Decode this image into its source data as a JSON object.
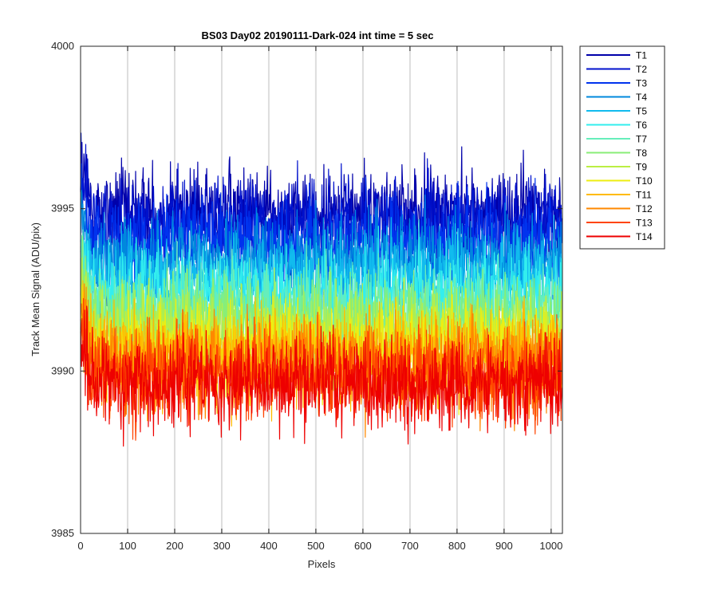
{
  "chart_data": {
    "type": "line",
    "title": "BS03 Day02 20190111-Dark-024 int time = 5 sec",
    "xlabel": "Pixels",
    "ylabel": "Track Mean Signal (ADU/pix)",
    "xlim": [
      0,
      1024
    ],
    "ylim": [
      3985,
      4000
    ],
    "xticks": [
      0,
      100,
      200,
      300,
      400,
      500,
      600,
      700,
      800,
      900,
      1000
    ],
    "yticks": [
      3985,
      3990,
      3995,
      4000
    ],
    "grid": "vertical",
    "legend_position": "outside-top-right",
    "x_count": 1024,
    "series": [
      {
        "name": "T1",
        "color": "#0000aa",
        "mean": 3994.9,
        "std": 0.95,
        "min": 3992.2,
        "max": 3998.2
      },
      {
        "name": "T2",
        "color": "#0011cc",
        "mean": 3994.5,
        "std": 0.95,
        "min": 3992.0,
        "max": 3997.6
      },
      {
        "name": "T3",
        "color": "#0033ee",
        "mean": 3994.0,
        "std": 0.95,
        "min": 3991.5,
        "max": 3997.0
      },
      {
        "name": "T4",
        "color": "#0088dd",
        "mean": 3993.4,
        "std": 0.95,
        "min": 3990.8,
        "max": 3996.6
      },
      {
        "name": "T5",
        "color": "#11bbee",
        "mean": 3992.9,
        "std": 0.95,
        "min": 3990.3,
        "max": 3996.0
      },
      {
        "name": "T6",
        "color": "#33eeee",
        "mean": 3992.4,
        "std": 0.95,
        "min": 3989.8,
        "max": 3995.4
      },
      {
        "name": "T7",
        "color": "#66eebb",
        "mean": 3991.9,
        "std": 0.95,
        "min": 3989.3,
        "max": 3995.0
      },
      {
        "name": "T8",
        "color": "#88ee77",
        "mean": 3991.5,
        "std": 0.95,
        "min": 3988.8,
        "max": 3994.6
      },
      {
        "name": "T9",
        "color": "#bbee44",
        "mean": 3991.1,
        "std": 0.95,
        "min": 3988.4,
        "max": 3994.2
      },
      {
        "name": "T10",
        "color": "#eeee11",
        "mean": 3990.8,
        "std": 0.95,
        "min": 3988.0,
        "max": 3993.9
      },
      {
        "name": "T11",
        "color": "#ffbb00",
        "mean": 3990.5,
        "std": 0.95,
        "min": 3987.6,
        "max": 3993.6
      },
      {
        "name": "T12",
        "color": "#ff8800",
        "mean": 3990.2,
        "std": 0.95,
        "min": 3986.7,
        "max": 3993.2
      },
      {
        "name": "T13",
        "color": "#ff4400",
        "mean": 3989.9,
        "std": 0.95,
        "min": 3986.9,
        "max": 3993.0
      },
      {
        "name": "T14",
        "color": "#ee0000",
        "mean": 3989.6,
        "std": 0.95,
        "min": 3985.6,
        "max": 3992.9
      }
    ]
  }
}
